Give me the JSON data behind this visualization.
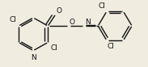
{
  "background_color": "#f0ece0",
  "bond_color": "#111111",
  "atom_label_color": "#111111",
  "bond_width": 1.0,
  "font_size": 6.5,
  "figsize": [
    1.83,
    0.83
  ],
  "dpi": 100,
  "xlim": [
    -0.05,
    1.05
  ],
  "ylim": [
    -0.05,
    1.05
  ]
}
